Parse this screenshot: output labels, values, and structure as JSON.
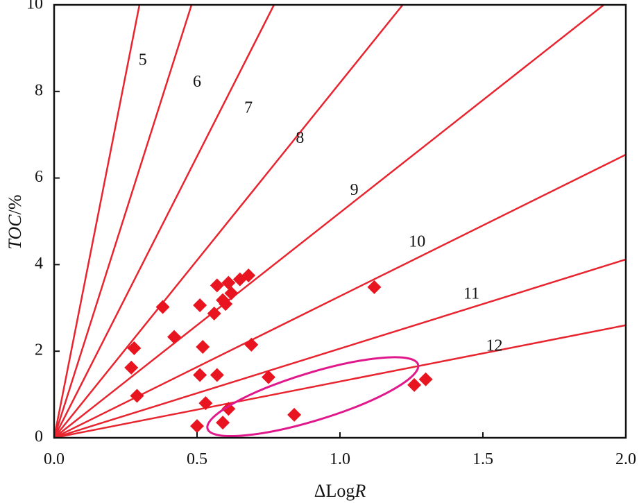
{
  "chart_data": {
    "type": "scatter",
    "xlabel": "ΔLogR",
    "ylabel": "TOC/%",
    "xlim": [
      0,
      2.0
    ],
    "ylim": [
      0,
      10
    ],
    "x_ticks": [
      "0.0",
      "0.5",
      "1.0",
      "1.5",
      "2.0"
    ],
    "y_ticks": [
      "0",
      "2",
      "4",
      "6",
      "8",
      "10"
    ],
    "grid": false,
    "iso_lines": [
      {
        "label": "5",
        "slope": 33.5,
        "label_at": [
          0.31,
          8.7
        ]
      },
      {
        "label": "6",
        "slope": 20.8,
        "label_at": [
          0.5,
          8.2
        ]
      },
      {
        "label": "7",
        "slope": 13.0,
        "label_at": [
          0.68,
          7.6
        ]
      },
      {
        "label": "8",
        "slope": 8.2,
        "label_at": [
          0.86,
          6.9
        ]
      },
      {
        "label": "9",
        "slope": 5.2,
        "label_at": [
          1.05,
          5.7
        ]
      },
      {
        "label": "10",
        "slope": 3.27,
        "label_at": [
          1.27,
          4.5
        ]
      },
      {
        "label": "11",
        "slope": 2.06,
        "label_at": [
          1.46,
          3.3
        ]
      },
      {
        "label": "12",
        "slope": 1.3,
        "label_at": [
          1.54,
          2.1
        ]
      }
    ],
    "points": [
      {
        "x": 0.27,
        "y": 1.62
      },
      {
        "x": 0.28,
        "y": 2.07
      },
      {
        "x": 0.29,
        "y": 0.97
      },
      {
        "x": 0.38,
        "y": 3.02
      },
      {
        "x": 0.42,
        "y": 2.33
      },
      {
        "x": 0.5,
        "y": 0.27
      },
      {
        "x": 0.51,
        "y": 1.45
      },
      {
        "x": 0.51,
        "y": 3.06
      },
      {
        "x": 0.52,
        "y": 2.1
      },
      {
        "x": 0.53,
        "y": 0.8
      },
      {
        "x": 0.56,
        "y": 2.87
      },
      {
        "x": 0.57,
        "y": 3.52
      },
      {
        "x": 0.57,
        "y": 1.45
      },
      {
        "x": 0.59,
        "y": 3.18
      },
      {
        "x": 0.59,
        "y": 0.35
      },
      {
        "x": 0.6,
        "y": 3.09
      },
      {
        "x": 0.61,
        "y": 3.58
      },
      {
        "x": 0.61,
        "y": 0.67
      },
      {
        "x": 0.62,
        "y": 3.34
      },
      {
        "x": 0.65,
        "y": 3.66
      },
      {
        "x": 0.68,
        "y": 3.75
      },
      {
        "x": 0.69,
        "y": 2.15
      },
      {
        "x": 0.75,
        "y": 1.4
      },
      {
        "x": 0.84,
        "y": 0.53
      },
      {
        "x": 1.12,
        "y": 3.48
      },
      {
        "x": 1.26,
        "y": 1.22
      },
      {
        "x": 1.3,
        "y": 1.35
      }
    ],
    "highlight_ellipse": {
      "cx": 0.905,
      "cy": 0.95,
      "rx": 0.385,
      "ry": 0.55,
      "rotation_deg": -17,
      "color": "#e0188c"
    },
    "colors": {
      "lines": "#e8242f",
      "points": "#e8141f",
      "axes": "#111111"
    }
  }
}
